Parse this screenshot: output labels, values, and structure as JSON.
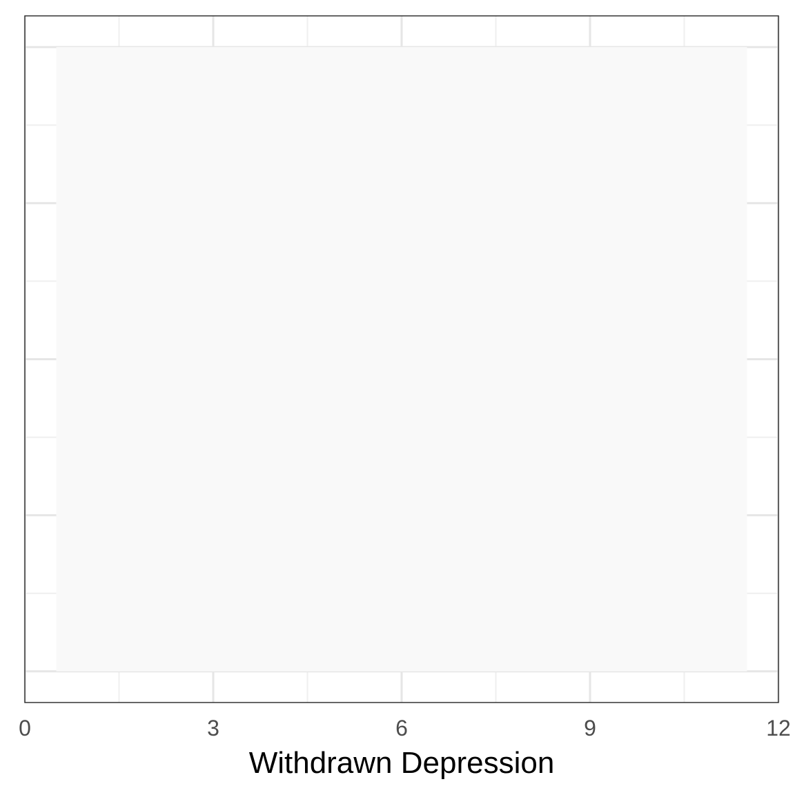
{
  "chart_data": {
    "type": "bar",
    "title": "",
    "xlabel": "Withdrawn Depression",
    "ylabel": "",
    "xlim": [
      0,
      12
    ],
    "x_ticks": [
      "0",
      "3",
      "6",
      "9",
      "12"
    ],
    "y_tick_labels_shown": false,
    "grid": true,
    "legend": "none",
    "series": [
      {
        "x_start": 0.5,
        "x_end": 11.5,
        "value": 1
      }
    ],
    "colors": {
      "bar_fill": "#f9f9f9",
      "grid_major": "#e6e6e6",
      "grid_minor": "#efefef",
      "panel_border": "#333333",
      "tick_text": "#4d4d4d",
      "axis_title_text": "#000000"
    }
  }
}
